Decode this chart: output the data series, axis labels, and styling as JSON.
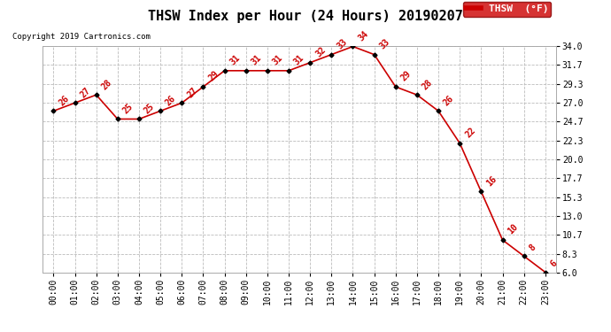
{
  "title": "THSW Index per Hour (24 Hours) 20190207",
  "copyright": "Copyright 2019 Cartronics.com",
  "legend_label": "THSW  (°F)",
  "hours": [
    "00:00",
    "01:00",
    "02:00",
    "03:00",
    "04:00",
    "05:00",
    "06:00",
    "07:00",
    "08:00",
    "09:00",
    "10:00",
    "11:00",
    "12:00",
    "13:00",
    "14:00",
    "15:00",
    "16:00",
    "17:00",
    "18:00",
    "19:00",
    "20:00",
    "21:00",
    "22:00",
    "23:00"
  ],
  "values": [
    26,
    27,
    28,
    25,
    25,
    26,
    27,
    29,
    31,
    31,
    31,
    31,
    32,
    33,
    34,
    33,
    29,
    28,
    26,
    22,
    16,
    10,
    8,
    6
  ],
  "ylim_min": 6.0,
  "ylim_max": 34.0,
  "yticks": [
    6.0,
    8.3,
    10.7,
    13.0,
    15.3,
    17.7,
    20.0,
    22.3,
    24.7,
    27.0,
    29.3,
    31.7,
    34.0
  ],
  "line_color": "#cc0000",
  "marker_color": "#000000",
  "background_color": "#ffffff",
  "grid_color": "#bbbbbb",
  "title_fontsize": 11,
  "copyright_fontsize": 6.5,
  "tick_fontsize": 7,
  "annotation_fontsize": 7,
  "legend_bg": "#cc0000",
  "legend_fg": "#ffffff",
  "legend_fontsize": 8
}
